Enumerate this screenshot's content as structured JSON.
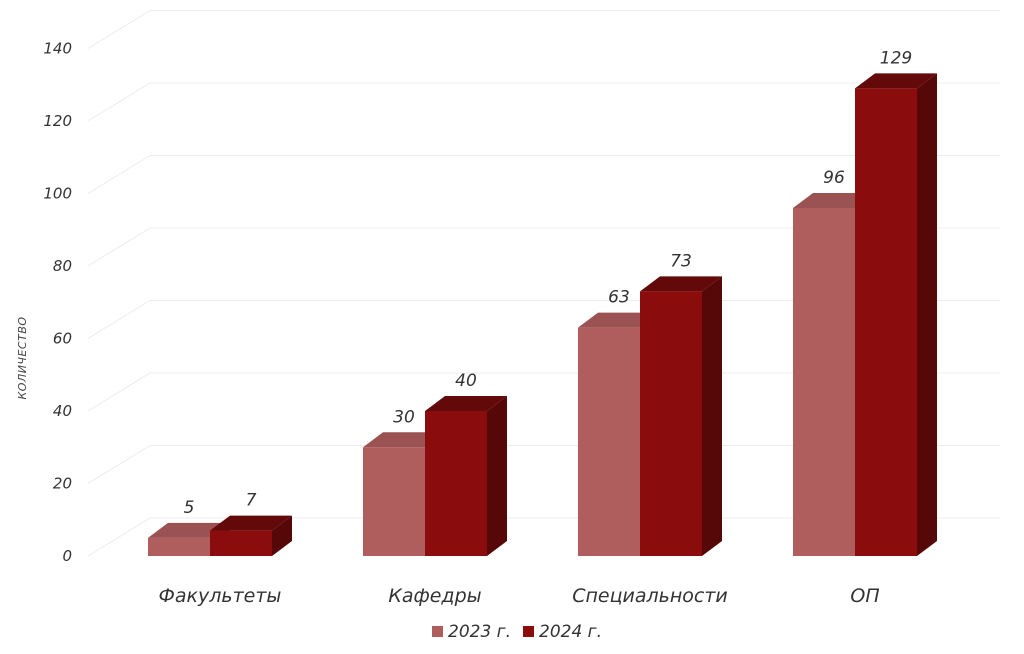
{
  "chart_data": {
    "type": "bar",
    "categories": [
      "Факультеты",
      "Кафедры",
      "Специальности",
      "ОП"
    ],
    "series": [
      {
        "name": "2023 г.",
        "values": [
          5,
          30,
          63,
          96
        ],
        "color": "#b05d5d"
      },
      {
        "name": "2024 г.",
        "values": [
          7,
          40,
          73,
          129
        ],
        "color": "#8b0c0c"
      }
    ],
    "ylabel": "КОЛИЧЕСТВО",
    "ylim": [
      0,
      140
    ],
    "yticks": [
      0,
      20,
      40,
      60,
      80,
      100,
      120,
      140
    ],
    "grid": true,
    "legend": "bottom",
    "style": "3d-bar"
  }
}
